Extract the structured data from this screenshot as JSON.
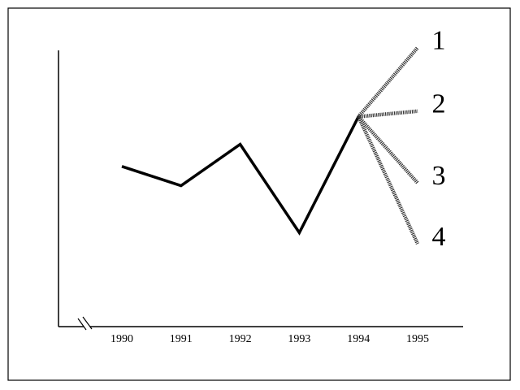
{
  "chart_data": {
    "type": "line",
    "categories": [
      "1990",
      "1991",
      "1992",
      "1993",
      "1994",
      "1995"
    ],
    "values": [
      58,
      51,
      66,
      34,
      76,
      null
    ],
    "color": "#000000",
    "ylim": [
      0,
      100
    ],
    "series": [
      {
        "name": "1",
        "color": "#333333",
        "values": [
          null,
          null,
          null,
          null,
          76,
          101
        ]
      },
      {
        "name": "2",
        "color": "#333333",
        "values": [
          null,
          null,
          null,
          null,
          76,
          78
        ]
      },
      {
        "name": "3",
        "color": "#333333",
        "values": [
          null,
          null,
          null,
          null,
          76,
          52
        ]
      },
      {
        "name": "4",
        "color": "#333333",
        "values": [
          null,
          null,
          null,
          null,
          76,
          30
        ]
      }
    ]
  }
}
